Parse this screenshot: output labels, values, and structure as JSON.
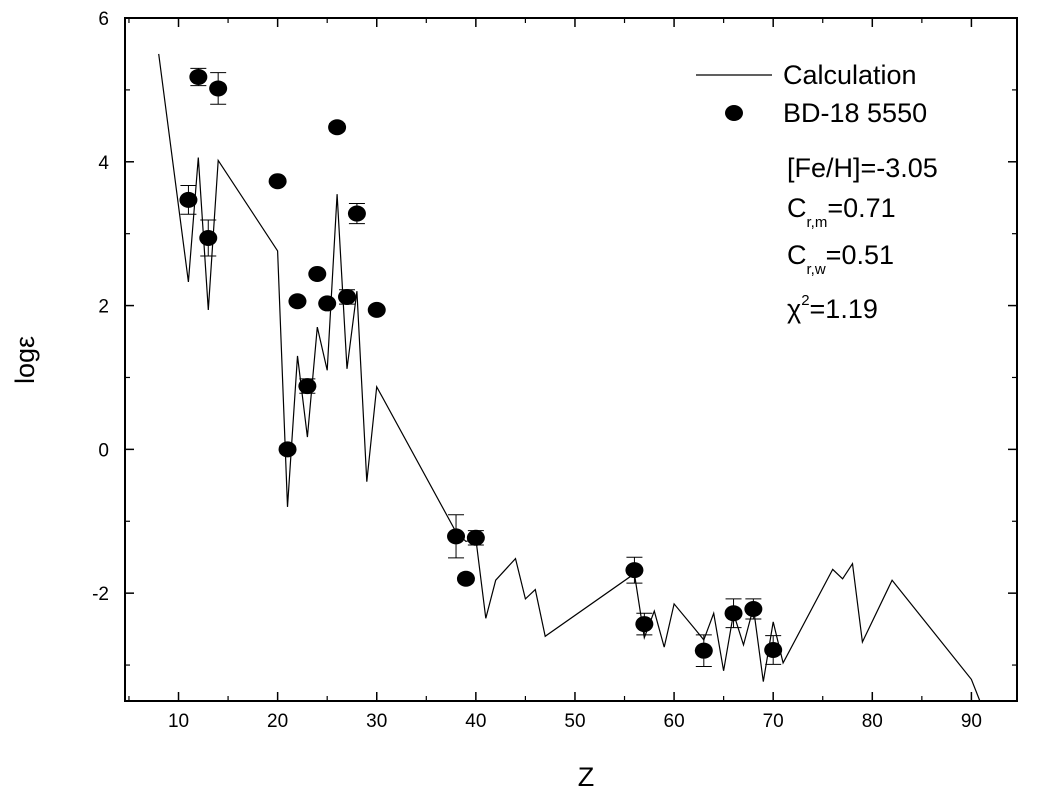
{
  "chart_data": {
    "type": "scatter",
    "xlabel": "Z",
    "ylabel": "logε",
    "xlim": [
      4.6,
      94.6
    ],
    "ylim": [
      -3.5,
      6
    ],
    "xticks": [
      "10",
      "20",
      "30",
      "40",
      "50",
      "60",
      "70",
      "80",
      "90"
    ],
    "yticks": [
      "-2",
      "0",
      "2",
      "4",
      "6"
    ],
    "grid": false,
    "legend_position": "top-right",
    "legend": {
      "line_label": "Calculation",
      "points_label": "BD-18 5550"
    },
    "annotations": {
      "feh": "[Fe/H]=-3.05",
      "crm_main": "C",
      "crm_sub": "r,m",
      "crm_value": "=0.71",
      "crw_main": "C",
      "crw_sub": "r,w",
      "crw_value": "=0.51",
      "chi_main": "χ",
      "chi_sup": "2",
      "chi_value": "=1.19"
    },
    "series": [
      {
        "name": "Calculation",
        "kind": "line",
        "x": [
          8,
          11,
          12,
          13,
          14,
          20,
          21,
          22,
          23,
          24,
          25,
          26,
          27,
          28,
          29,
          30,
          38,
          39,
          40,
          41,
          42,
          44,
          45,
          46,
          47,
          56,
          57,
          58,
          59,
          60,
          62,
          63,
          64,
          65,
          66,
          67,
          68,
          69,
          70,
          71,
          76,
          77,
          78,
          79,
          82,
          90,
          91
        ],
        "y": [
          5.5,
          2.33,
          4.06,
          1.94,
          4.02,
          2.76,
          -0.8,
          1.3,
          0.17,
          1.7,
          1.1,
          3.55,
          1.12,
          2.2,
          -0.45,
          0.87,
          -1.15,
          -1.28,
          -1.25,
          -2.35,
          -1.82,
          -1.52,
          -2.08,
          -1.95,
          -2.6,
          -1.73,
          -2.62,
          -2.25,
          -2.75,
          -2.15,
          -2.48,
          -2.65,
          -2.28,
          -3.08,
          -2.28,
          -2.72,
          -2.2,
          -3.23,
          -2.4,
          -2.97,
          -1.67,
          -1.8,
          -1.59,
          -2.68,
          -1.82,
          -3.2,
          -3.55
        ]
      },
      {
        "name": "BD-18 5550",
        "kind": "points",
        "x": [
          11,
          12,
          13,
          14,
          20,
          21,
          22,
          23,
          24,
          25,
          26,
          27,
          28,
          30,
          38,
          39,
          40,
          56,
          57,
          63,
          66,
          68,
          70
        ],
        "y": [
          3.47,
          5.18,
          2.94,
          5.02,
          3.73,
          0.0,
          2.06,
          0.88,
          2.44,
          2.03,
          4.48,
          2.12,
          3.28,
          1.94,
          -1.21,
          -1.8,
          -1.23,
          -1.68,
          -2.43,
          -2.8,
          -2.28,
          -2.22,
          -2.79
        ],
        "err": [
          0.2,
          0.12,
          0.25,
          0.22,
          0,
          0.05,
          0,
          0.1,
          0,
          0,
          0.05,
          0.1,
          0.14,
          0,
          0.3,
          0,
          0.1,
          0.18,
          0.15,
          0.22,
          0.2,
          0.14,
          0.2
        ]
      }
    ]
  }
}
